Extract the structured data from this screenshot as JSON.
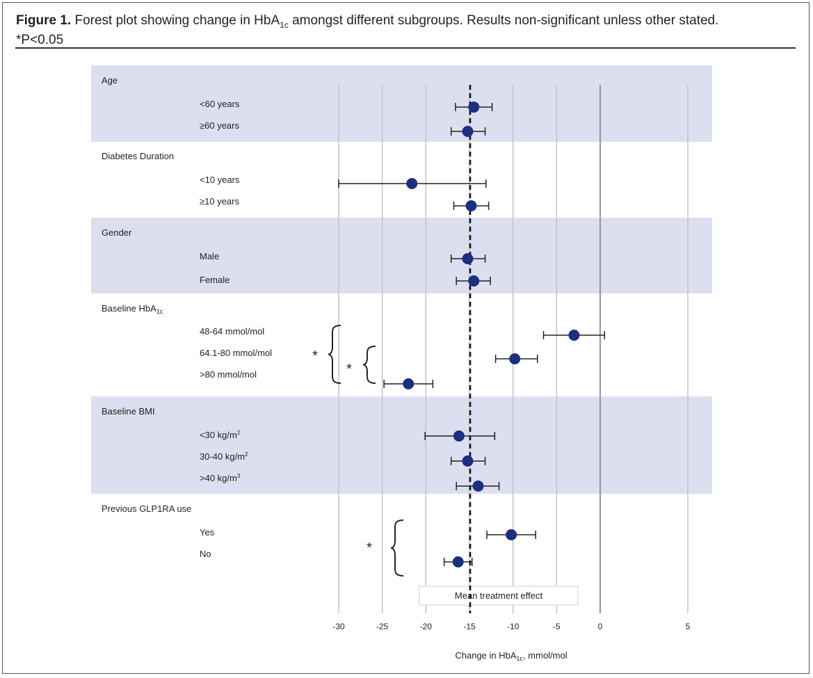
{
  "caption": {
    "bold": "Figure 1.",
    "text_pre": " Forest plot showing change in HbA",
    "text_sub": "1c",
    "text_post": " amongst different subgroups. Results non-significant unless other stated.",
    "note": "*P<0.05"
  },
  "chart_data": {
    "type": "forest",
    "title": "Forest plot showing change in HbA1c amongst different subgroups",
    "xlabel": "Change in HbA1c, mmol/mol",
    "xlim": [
      -30,
      5
    ],
    "xticks": [
      -30,
      -25,
      -20,
      -15,
      -10,
      -5,
      0,
      5
    ],
    "tick_labels": [
      "-30",
      "-25",
      "-20",
      "-15",
      "-10",
      "-5",
      "0",
      "5"
    ],
    "reference_line": {
      "value": -15,
      "label": "Mean treatment effect"
    },
    "significance_marker": "*",
    "groups": [
      {
        "name": "Age",
        "name_sub": "",
        "shaded": true,
        "rows": [
          {
            "label": "<60 years",
            "sup": "",
            "estimate": -14.5,
            "ci": [
              -16.6,
              -12.4
            ]
          },
          {
            "label": "≥60 years",
            "sup": "",
            "estimate": -15.2,
            "ci": [
              -17.1,
              -13.2
            ]
          }
        ]
      },
      {
        "name": "Diabetes Duration",
        "name_sub": "",
        "shaded": false,
        "rows": [
          {
            "label": "<10 years",
            "sup": "",
            "estimate": -21.6,
            "ci": [
              -30.0,
              -13.1
            ]
          },
          {
            "label": "≥10 years",
            "sup": "",
            "estimate": -14.8,
            "ci": [
              -16.8,
              -12.8
            ]
          }
        ]
      },
      {
        "name": "Gender",
        "name_sub": "",
        "shaded": true,
        "rows": [
          {
            "label": "Male",
            "sup": "",
            "estimate": -15.2,
            "ci": [
              -17.1,
              -13.2
            ]
          },
          {
            "label": "Female",
            "sup": "",
            "estimate": -14.5,
            "ci": [
              -16.5,
              -12.6
            ]
          }
        ]
      },
      {
        "name": "Baseline HbA",
        "name_sub": "1c",
        "shaded": false,
        "rows": [
          {
            "label": "48-64 mmol/mol",
            "sup": "",
            "estimate": -3.0,
            "ci": [
              -6.5,
              0.5
            ]
          },
          {
            "label": "64.1-80 mmol/mol",
            "sup": "",
            "estimate": -9.8,
            "ci": [
              -12.0,
              -7.2
            ]
          },
          {
            "label": ">80 mmol/mol",
            "sup": "",
            "estimate": -22.0,
            "ci": [
              -24.8,
              -19.2
            ]
          }
        ]
      },
      {
        "name": "Baseline BMI",
        "name_sub": "",
        "shaded": true,
        "rows": [
          {
            "label": "<30 kg/m",
            "sup": "2",
            "estimate": -16.2,
            "ci": [
              -20.1,
              -12.1
            ]
          },
          {
            "label": "30-40 kg/m",
            "sup": "2",
            "estimate": -15.2,
            "ci": [
              -17.1,
              -13.2
            ]
          },
          {
            "label": ">40 kg/m",
            "sup": "3",
            "estimate": -14.0,
            "ci": [
              -16.5,
              -11.6
            ]
          }
        ]
      },
      {
        "name": "Previous GLP1RA use",
        "name_sub": "",
        "shaded": false,
        "rows": [
          {
            "label": "Yes",
            "sup": "",
            "estimate": -10.2,
            "ci": [
              -13.0,
              -7.4
            ]
          },
          {
            "label": "No",
            "sup": "",
            "estimate": -16.3,
            "ci": [
              -17.9,
              -14.7
            ]
          }
        ]
      }
    ]
  },
  "colors": {
    "shade": "#dcdfef",
    "marker": "#1c2f80",
    "gridline": "#c4c4c4",
    "zero_line": "#9a9a9a",
    "text": "#222222"
  }
}
